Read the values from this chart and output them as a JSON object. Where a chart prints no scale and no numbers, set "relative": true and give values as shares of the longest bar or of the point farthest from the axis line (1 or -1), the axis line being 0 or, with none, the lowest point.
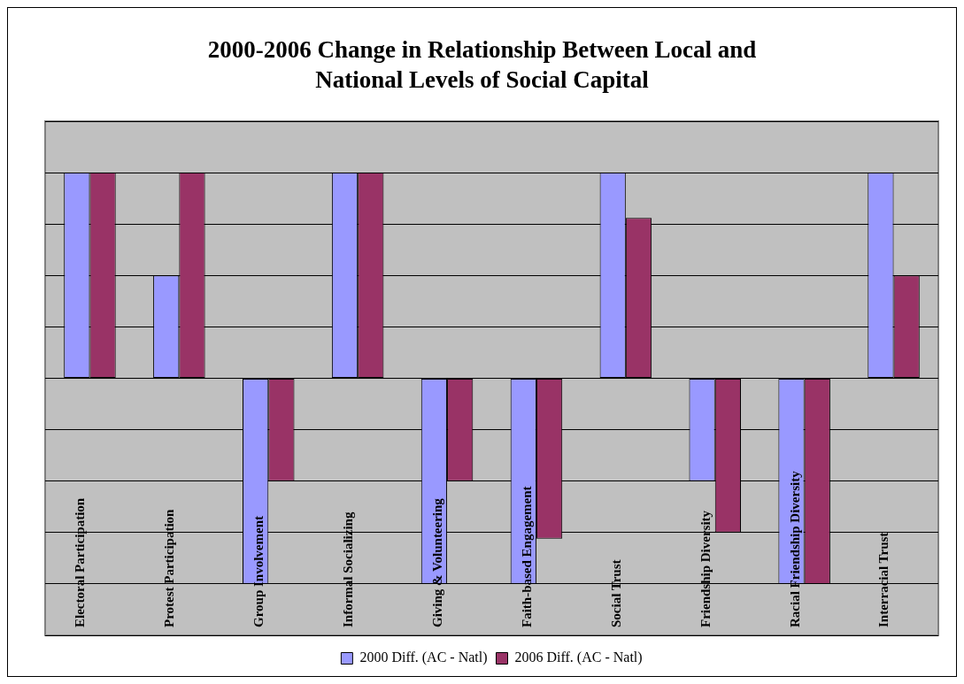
{
  "chart_data": {
    "type": "bar",
    "title": "2000-2006 Change in Relationship Between Local and National Levels of Social Capital",
    "relative": true,
    "grid": true,
    "legend": "bottom",
    "categories": [
      "Electoral Participation",
      "Protest Participation",
      "Group Involvement",
      "Informal Socializing",
      "Giving & Volunteering",
      "Faith-based Engagement",
      "Social Trust",
      "Friendship Diversity",
      "Racial Friendship Diversity",
      "Interracial Trust"
    ],
    "series": [
      {
        "name": "2000 Diff. (AC - Natl)",
        "color": "#9999ff",
        "values": [
          1,
          0.5,
          -1,
          1,
          -1,
          -1,
          1,
          -0.5,
          -1,
          1
        ]
      },
      {
        "name": "2006 Diff. (AC - Natl)",
        "color": "#993366",
        "values": [
          1,
          1,
          -0.5,
          1,
          -0.5,
          -0.78,
          0.78,
          -0.75,
          -1,
          0.5
        ]
      }
    ]
  }
}
